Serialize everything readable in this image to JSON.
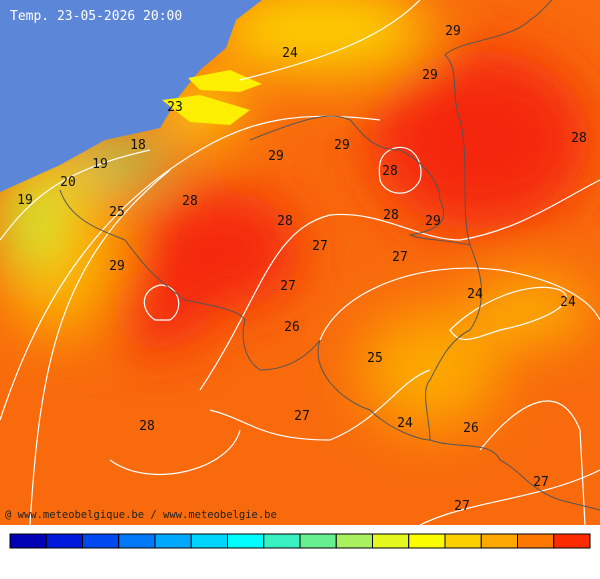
{
  "header": {
    "title": "Temp. 23-05-2026 20:00"
  },
  "labels": [
    24,
    29,
    29,
    23,
    18,
    19,
    29,
    29,
    28,
    20,
    19,
    28,
    25,
    28,
    28,
    28,
    29,
    27,
    27,
    29,
    27,
    24,
    24,
    26,
    25,
    27,
    28,
    24,
    26,
    27,
    27
  ],
  "footer": {
    "credit": "@ www.meteobelgique.be / www.meteobelgie.be"
  },
  "colorbar": {
    "colors": [
      "#0000b4",
      "#0018dc",
      "#0048f0",
      "#0078f8",
      "#00a8fc",
      "#00d4fc",
      "#00fcfc",
      "#38f0c0",
      "#68f090",
      "#a8f060",
      "#e4f820",
      "#fcfc00",
      "#fcd000",
      "#fca800",
      "#fc7800",
      "#fc2c00"
    ]
  }
}
